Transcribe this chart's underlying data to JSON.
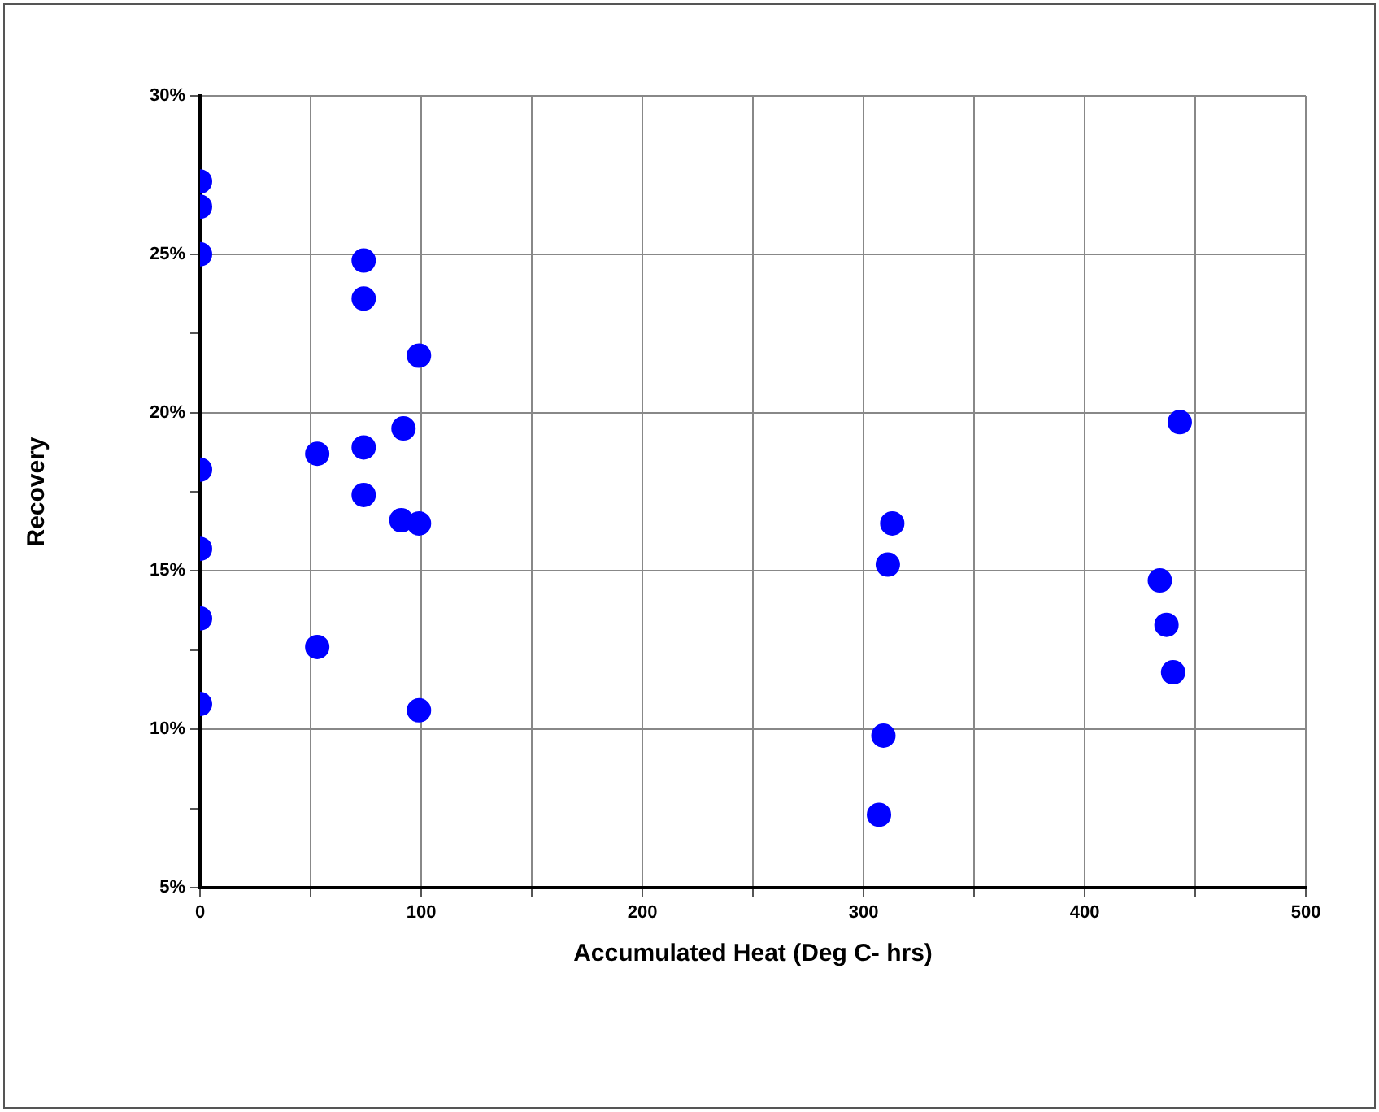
{
  "chart_data": {
    "type": "scatter",
    "xlabel": "Accumulated Heat (Deg C- hrs)",
    "ylabel": "Recovery",
    "x": [
      0,
      0,
      0,
      0,
      0,
      0,
      0,
      53,
      53,
      74,
      74,
      74,
      74,
      99,
      92,
      91,
      99,
      99,
      313,
      311,
      309,
      307,
      443,
      434,
      437,
      440
    ],
    "series": [
      {
        "color": "#0000ff",
        "values": [
          27.3,
          26.5,
          25.0,
          18.2,
          15.7,
          13.5,
          10.8,
          18.7,
          12.6,
          24.8,
          23.6,
          18.9,
          17.4,
          21.8,
          19.5,
          16.6,
          16.5,
          10.6,
          16.5,
          15.2,
          9.8,
          7.3,
          19.7,
          14.7,
          13.3,
          11.8
        ]
      }
    ],
    "xlim": [
      0,
      500
    ],
    "xticks": [
      0,
      {
        "value": 50,
        "label": null
      },
      100,
      {
        "value": 150,
        "label": null
      },
      200,
      {
        "value": 250,
        "label": null
      },
      300,
      {
        "value": 350,
        "label": null
      },
      400,
      {
        "value": 450,
        "label": null
      },
      500
    ],
    "ylim": [
      5,
      30
    ],
    "yticks": [
      {
        "value": 5,
        "label": "5%"
      },
      {
        "value": 7.5,
        "label": null
      },
      {
        "value": 10,
        "label": "10%"
      },
      {
        "value": 12.5,
        "label": null
      },
      {
        "value": 15,
        "label": "15%"
      },
      {
        "value": 17.5,
        "label": null
      },
      {
        "value": 20,
        "label": "20%"
      },
      {
        "value": 22.5,
        "label": null
      },
      {
        "value": 25,
        "label": "25%"
      },
      {
        "value": 30,
        "label": "30%"
      }
    ],
    "grid": true,
    "legend": false,
    "marker": "circle"
  }
}
